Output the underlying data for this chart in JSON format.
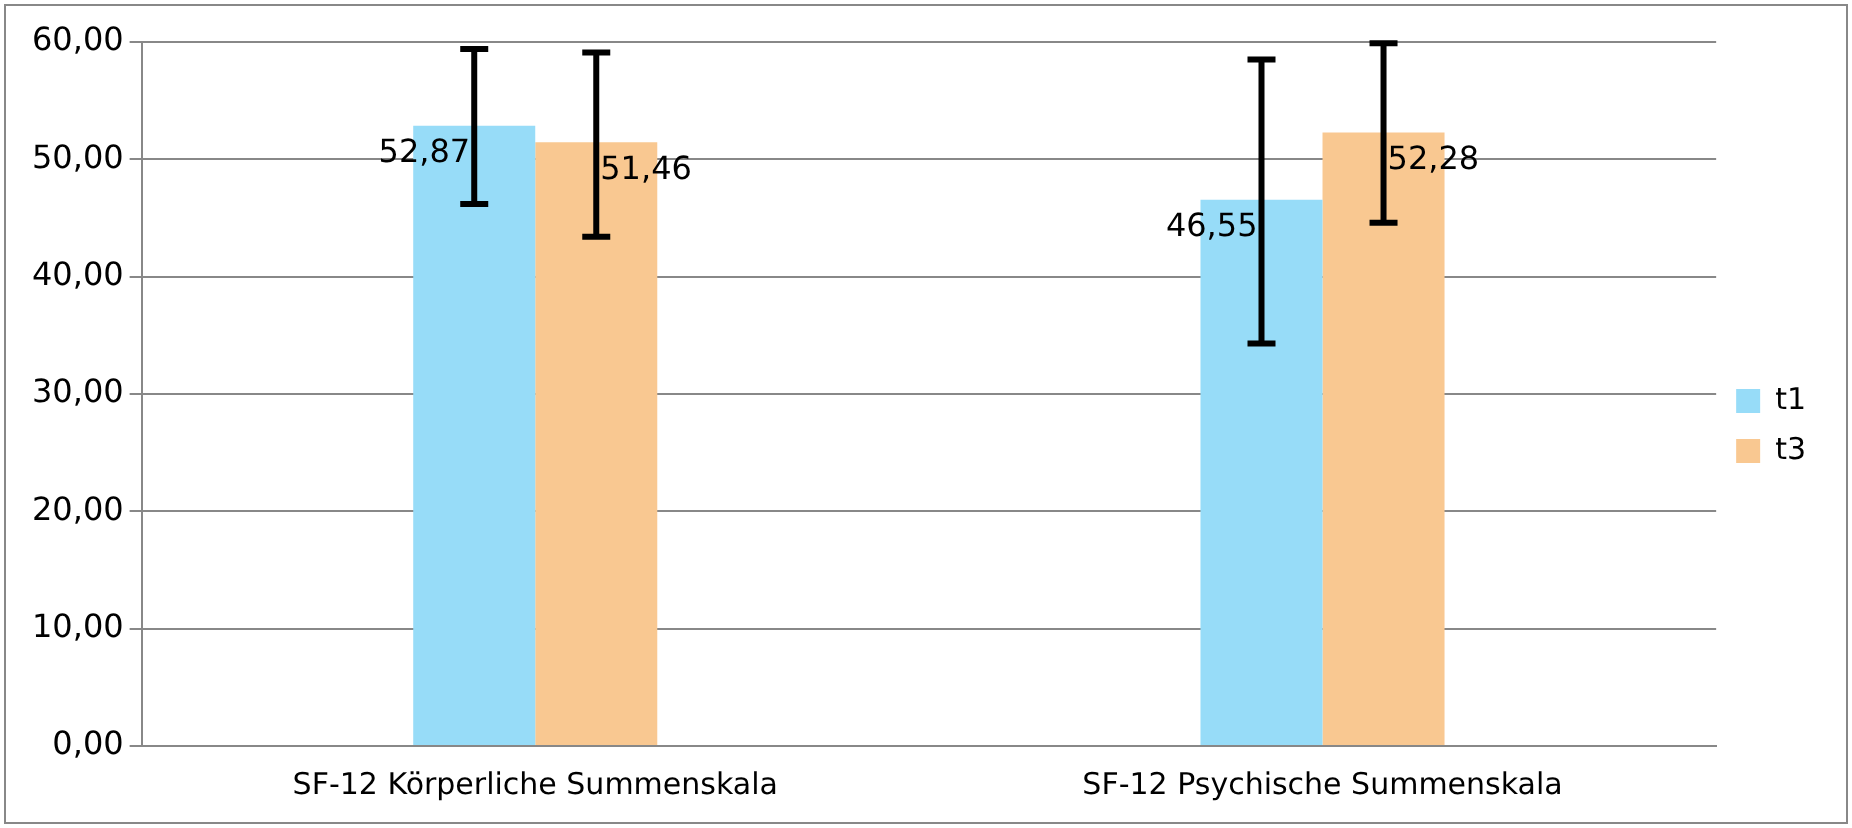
{
  "chart_data": {
    "type": "bar",
    "categories": [
      "SF-12 Körperliche Summenskala",
      "SF-12 Psychische Summenskala"
    ],
    "series": [
      {
        "name": "t1",
        "color": "#97dcf8",
        "values": [
          52.87,
          46.55
        ],
        "value_labels": [
          "52,87",
          "46,55"
        ],
        "errors": [
          [
            46.2,
            59.4
          ],
          [
            34.3,
            58.5
          ]
        ]
      },
      {
        "name": "t3",
        "color": "#f9c891",
        "values": [
          51.46,
          52.28
        ],
        "value_labels": [
          "51,46",
          "52,28"
        ],
        "errors": [
          [
            43.4,
            59.1
          ],
          [
            44.6,
            59.9
          ]
        ]
      }
    ],
    "ylim": [
      0,
      60
    ],
    "yticks": [
      {
        "value": 0,
        "label": "0,00"
      },
      {
        "value": 10,
        "label": "10,00"
      },
      {
        "value": 20,
        "label": "20,00"
      },
      {
        "value": 30,
        "label": "30,00"
      },
      {
        "value": 40,
        "label": "40,00"
      },
      {
        "value": 50,
        "label": "50,00"
      },
      {
        "value": 60,
        "label": "60,00"
      }
    ],
    "grid": "y",
    "legend": "right"
  }
}
